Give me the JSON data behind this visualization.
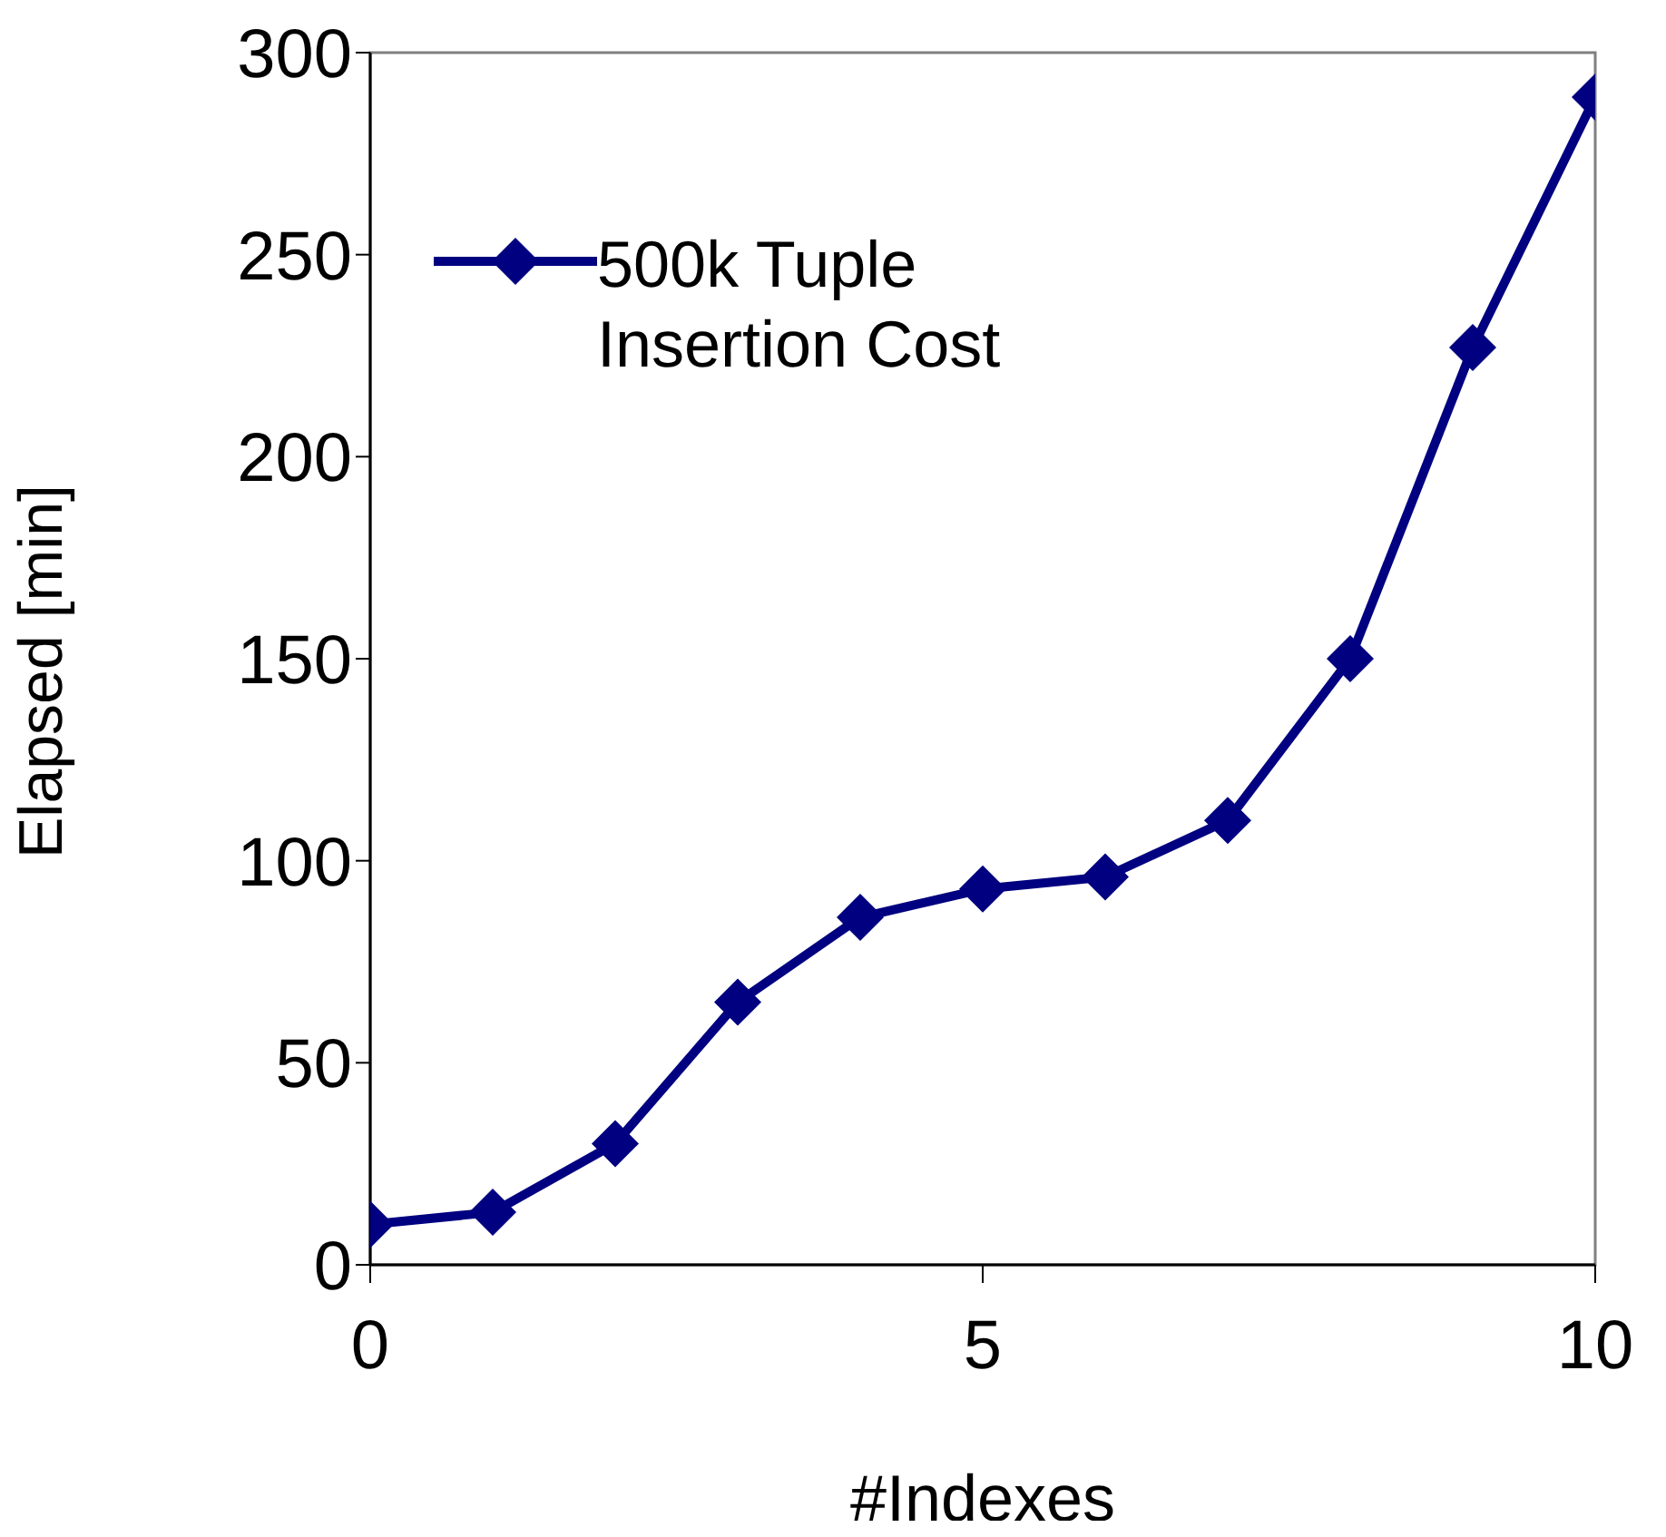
{
  "chart_data": {
    "type": "line",
    "xlabel": "#Indexes",
    "ylabel": "Elapsed [min]",
    "x": [
      0,
      1,
      2,
      3,
      4,
      5,
      6,
      7,
      8,
      9,
      10
    ],
    "series": [
      {
        "name": "500k Tuple Insertion Cost",
        "color": "#000080",
        "values": [
          10,
          13,
          30,
          65,
          86,
          93,
          96,
          110,
          150,
          227,
          289
        ]
      }
    ],
    "xlim": [
      0,
      10
    ],
    "xticks": [
      0,
      5,
      10
    ],
    "ylim": [
      0,
      300
    ],
    "yticks": [
      0,
      50,
      100,
      150,
      200,
      250,
      300
    ],
    "grid": false,
    "legend": "top left",
    "marker": "diamond",
    "line_style": "solid"
  }
}
